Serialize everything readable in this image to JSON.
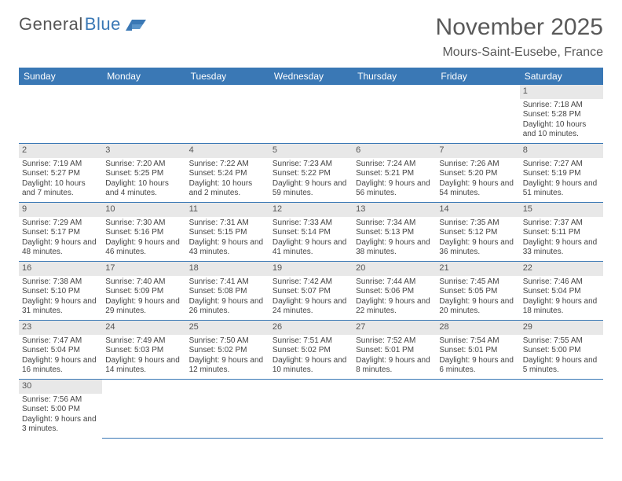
{
  "logo": {
    "text1": "General",
    "text2": "Blue"
  },
  "title": "November 2025",
  "location": "Mours-Saint-Eusebe, France",
  "colors": {
    "header_bg": "#3a78b5",
    "header_fg": "#ffffff",
    "daynum_bg": "#e8e8e8",
    "rule": "#3a78b5",
    "title_fg": "#595959"
  },
  "weekdays": [
    "Sunday",
    "Monday",
    "Tuesday",
    "Wednesday",
    "Thursday",
    "Friday",
    "Saturday"
  ],
  "weeks": [
    [
      null,
      null,
      null,
      null,
      null,
      null,
      {
        "n": "1",
        "sr": "7:18 AM",
        "ss": "5:28 PM",
        "dl": "10 hours and 10 minutes."
      }
    ],
    [
      {
        "n": "2",
        "sr": "7:19 AM",
        "ss": "5:27 PM",
        "dl": "10 hours and 7 minutes."
      },
      {
        "n": "3",
        "sr": "7:20 AM",
        "ss": "5:25 PM",
        "dl": "10 hours and 4 minutes."
      },
      {
        "n": "4",
        "sr": "7:22 AM",
        "ss": "5:24 PM",
        "dl": "10 hours and 2 minutes."
      },
      {
        "n": "5",
        "sr": "7:23 AM",
        "ss": "5:22 PM",
        "dl": "9 hours and 59 minutes."
      },
      {
        "n": "6",
        "sr": "7:24 AM",
        "ss": "5:21 PM",
        "dl": "9 hours and 56 minutes."
      },
      {
        "n": "7",
        "sr": "7:26 AM",
        "ss": "5:20 PM",
        "dl": "9 hours and 54 minutes."
      },
      {
        "n": "8",
        "sr": "7:27 AM",
        "ss": "5:19 PM",
        "dl": "9 hours and 51 minutes."
      }
    ],
    [
      {
        "n": "9",
        "sr": "7:29 AM",
        "ss": "5:17 PM",
        "dl": "9 hours and 48 minutes."
      },
      {
        "n": "10",
        "sr": "7:30 AM",
        "ss": "5:16 PM",
        "dl": "9 hours and 46 minutes."
      },
      {
        "n": "11",
        "sr": "7:31 AM",
        "ss": "5:15 PM",
        "dl": "9 hours and 43 minutes."
      },
      {
        "n": "12",
        "sr": "7:33 AM",
        "ss": "5:14 PM",
        "dl": "9 hours and 41 minutes."
      },
      {
        "n": "13",
        "sr": "7:34 AM",
        "ss": "5:13 PM",
        "dl": "9 hours and 38 minutes."
      },
      {
        "n": "14",
        "sr": "7:35 AM",
        "ss": "5:12 PM",
        "dl": "9 hours and 36 minutes."
      },
      {
        "n": "15",
        "sr": "7:37 AM",
        "ss": "5:11 PM",
        "dl": "9 hours and 33 minutes."
      }
    ],
    [
      {
        "n": "16",
        "sr": "7:38 AM",
        "ss": "5:10 PM",
        "dl": "9 hours and 31 minutes."
      },
      {
        "n": "17",
        "sr": "7:40 AM",
        "ss": "5:09 PM",
        "dl": "9 hours and 29 minutes."
      },
      {
        "n": "18",
        "sr": "7:41 AM",
        "ss": "5:08 PM",
        "dl": "9 hours and 26 minutes."
      },
      {
        "n": "19",
        "sr": "7:42 AM",
        "ss": "5:07 PM",
        "dl": "9 hours and 24 minutes."
      },
      {
        "n": "20",
        "sr": "7:44 AM",
        "ss": "5:06 PM",
        "dl": "9 hours and 22 minutes."
      },
      {
        "n": "21",
        "sr": "7:45 AM",
        "ss": "5:05 PM",
        "dl": "9 hours and 20 minutes."
      },
      {
        "n": "22",
        "sr": "7:46 AM",
        "ss": "5:04 PM",
        "dl": "9 hours and 18 minutes."
      }
    ],
    [
      {
        "n": "23",
        "sr": "7:47 AM",
        "ss": "5:04 PM",
        "dl": "9 hours and 16 minutes."
      },
      {
        "n": "24",
        "sr": "7:49 AM",
        "ss": "5:03 PM",
        "dl": "9 hours and 14 minutes."
      },
      {
        "n": "25",
        "sr": "7:50 AM",
        "ss": "5:02 PM",
        "dl": "9 hours and 12 minutes."
      },
      {
        "n": "26",
        "sr": "7:51 AM",
        "ss": "5:02 PM",
        "dl": "9 hours and 10 minutes."
      },
      {
        "n": "27",
        "sr": "7:52 AM",
        "ss": "5:01 PM",
        "dl": "9 hours and 8 minutes."
      },
      {
        "n": "28",
        "sr": "7:54 AM",
        "ss": "5:01 PM",
        "dl": "9 hours and 6 minutes."
      },
      {
        "n": "29",
        "sr": "7:55 AM",
        "ss": "5:00 PM",
        "dl": "9 hours and 5 minutes."
      }
    ],
    [
      {
        "n": "30",
        "sr": "7:56 AM",
        "ss": "5:00 PM",
        "dl": "9 hours and 3 minutes."
      },
      null,
      null,
      null,
      null,
      null,
      null
    ]
  ]
}
